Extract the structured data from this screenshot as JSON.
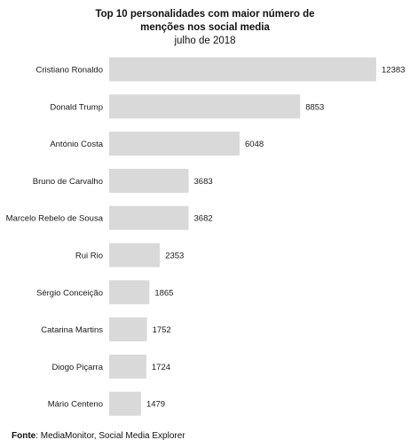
{
  "chart_data": {
    "type": "bar",
    "orientation": "horizontal",
    "title_lines": [
      "Top 10 personalidades com maior número de",
      "menções nos social  media"
    ],
    "subtitle": "julho de 2018",
    "categories": [
      "Cristiano Ronaldo",
      "Donald Trump",
      "António Costa",
      "Bruno de Carvalho",
      "Marcelo Rebelo de Sousa",
      "Rui Rio",
      "Sérgio Conceição",
      "Catarina Martins",
      "Diogo Piçarra",
      "Mário Centeno"
    ],
    "values": [
      12383,
      8853,
      6048,
      3683,
      3682,
      2353,
      1865,
      1752,
      1724,
      1479
    ],
    "xlim": [
      0,
      12383
    ],
    "bar_color": "#d9d9d9",
    "grid": false,
    "legend": "none",
    "data_labels": true
  },
  "source": {
    "label": "Fonte",
    "text": ": MediaMonitor, Social Media Explorer"
  }
}
